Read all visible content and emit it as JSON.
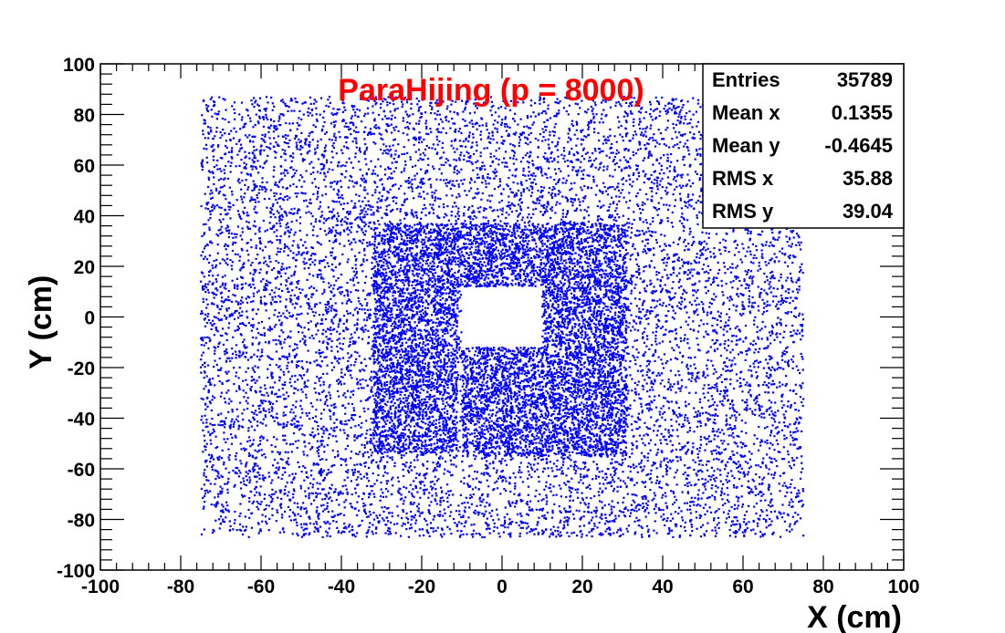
{
  "chart_data": {
    "type": "scatter",
    "title": "ParaHijing (p = 8000)",
    "title_color": "#ff0000",
    "marker_color": "#0000ff",
    "xlabel": "X (cm)",
    "ylabel": "Y (cm)",
    "xlim": [
      -100,
      100
    ],
    "ylim": [
      -100,
      100
    ],
    "x_ticks": [
      "-100",
      "-80",
      "-60",
      "-40",
      "-20",
      "0",
      "20",
      "40",
      "60",
      "80",
      "100"
    ],
    "y_ticks": [
      "-100",
      "-80",
      "-60",
      "-40",
      "-20",
      "0",
      "20",
      "40",
      "60",
      "80",
      "100"
    ],
    "grid": false,
    "stats_box": {
      "placement": "top-right",
      "rows": [
        {
          "label": "Entries",
          "value": "35789"
        },
        {
          "label": "Mean x",
          "value": "0.1355"
        },
        {
          "label": "Mean y",
          "value": "-0.4645"
        },
        {
          "label": "RMS x",
          "value": "35.88"
        },
        {
          "label": "RMS y",
          "value": "39.04"
        }
      ]
    },
    "data_regions": [
      {
        "name": "outer-region",
        "x": [
          -75,
          75
        ],
        "y": [
          -87,
          87
        ],
        "relative_density": 1
      },
      {
        "name": "inner-top",
        "x": [
          -32,
          10
        ],
        "y": [
          12,
          37
        ],
        "relative_density": 3
      },
      {
        "name": "inner-left",
        "x": [
          -32,
          -11
        ],
        "y": [
          -54,
          12
        ],
        "relative_density": 3
      },
      {
        "name": "inner-bottom",
        "x": [
          -10,
          31
        ],
        "y": [
          -55,
          -12
        ],
        "relative_density": 3
      },
      {
        "name": "inner-right",
        "x": [
          10,
          31
        ],
        "y": [
          -12,
          37
        ],
        "relative_density": 3
      }
    ],
    "empty_region": {
      "x": [
        -10,
        10
      ],
      "y": [
        -12,
        12
      ]
    }
  }
}
